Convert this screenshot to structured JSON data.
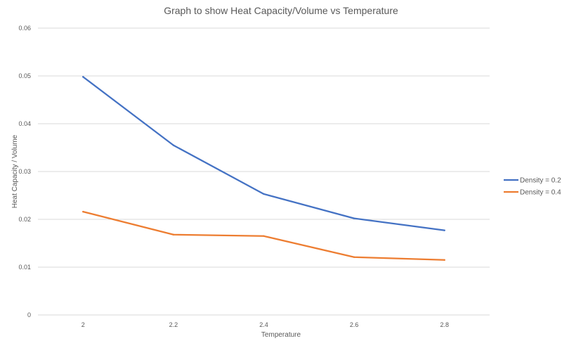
{
  "chart_data": {
    "type": "line",
    "title": "Graph to show Heat Capacity/Volume vs Temperature",
    "xlabel": "Temperature",
    "ylabel": "Heat Capacity / Volume",
    "categories": [
      "2",
      "2.2",
      "2.4",
      "2.6",
      "2.8"
    ],
    "y_ticks": [
      "0",
      "0.01",
      "0.02",
      "0.03",
      "0.04",
      "0.05",
      "0.06"
    ],
    "ylim": [
      0,
      0.06
    ],
    "grid": true,
    "legend_position": "right",
    "series": [
      {
        "name": "Density = 0.2",
        "color": "#4472c4",
        "values": [
          0.0498,
          0.0355,
          0.0253,
          0.0202,
          0.0177
        ]
      },
      {
        "name": "Density = 0.4",
        "color": "#ed7d31",
        "values": [
          0.0216,
          0.0168,
          0.0165,
          0.0121,
          0.0115
        ]
      }
    ]
  }
}
